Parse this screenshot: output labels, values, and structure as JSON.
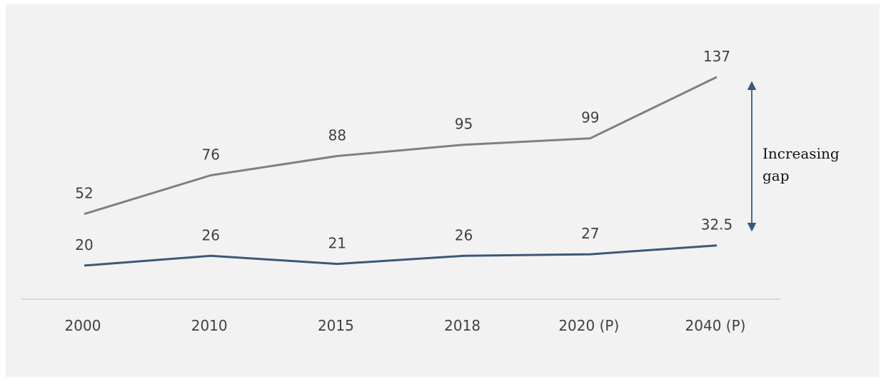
{
  "chart_data": {
    "type": "line",
    "categories": [
      "2000",
      "2010",
      "2015",
      "2018",
      "2020 (P)",
      "2040 (P)"
    ],
    "series": [
      {
        "values": [
          52,
          76,
          88,
          95,
          99,
          137
        ],
        "color": "#808080"
      },
      {
        "values": [
          20,
          26,
          21,
          26,
          27,
          32.5
        ],
        "color": "#3b5878"
      }
    ],
    "value_labels": [
      [
        "52",
        "76",
        "88",
        "95",
        "99",
        "137"
      ],
      [
        "20",
        "26",
        "21",
        "26",
        "27",
        "32.5"
      ]
    ],
    "annotation": {
      "lines": [
        "Increasing",
        "gap"
      ],
      "arrow": "double",
      "color": "#3b5878"
    },
    "ylim": [
      0,
      150
    ],
    "grid": false,
    "legend": "none",
    "title": "",
    "xlabel": "",
    "ylabel": ""
  }
}
